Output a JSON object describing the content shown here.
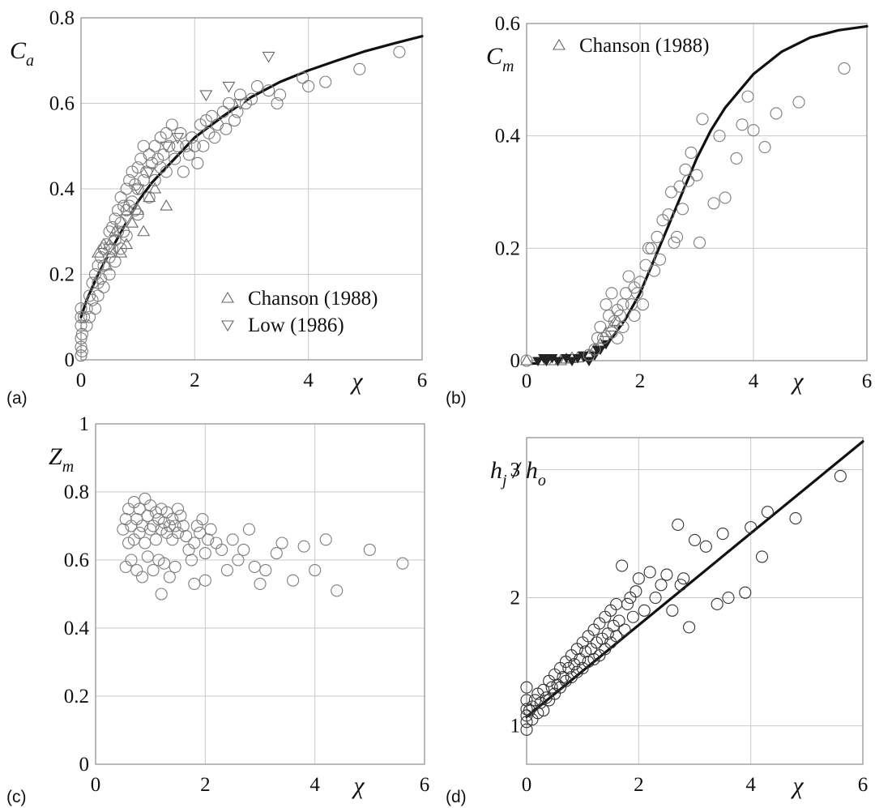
{
  "chart_data": [
    {
      "type": "scatter",
      "panel_label": "(a)",
      "ylabel": "C",
      "ylabel_sub": "a",
      "xlabel": "χ",
      "xlim": [
        0,
        6
      ],
      "ylim": [
        0,
        0.8
      ],
      "xticks": [
        "0",
        "2",
        "4",
        "6"
      ],
      "yticks": [
        "0",
        "0.2",
        "0.4",
        "0.6",
        "0.8"
      ],
      "grid": true,
      "legend_position": "bottom-right",
      "series": [
        {
          "name": "",
          "kind": "line",
          "x": [
            0,
            0.1,
            0.2,
            0.3,
            0.5,
            0.75,
            1,
            1.25,
            1.5,
            2,
            2.5,
            3,
            3.5,
            4,
            4.5,
            5,
            5.5,
            6
          ],
          "y": [
            0.1,
            0.14,
            0.17,
            0.2,
            0.25,
            0.31,
            0.37,
            0.415,
            0.45,
            0.52,
            0.57,
            0.615,
            0.65,
            0.677,
            0.7,
            0.722,
            0.74,
            0.757
          ]
        },
        {
          "name": "Chanson (1988)",
          "kind": "triangle-up",
          "x": [
            0.3,
            0.4,
            0.45,
            0.5,
            0.55,
            0.6,
            0.7,
            0.8,
            0.9,
            1.0,
            1.1,
            1.2,
            1.3,
            1.5
          ],
          "y": [
            0.25,
            0.27,
            0.22,
            0.27,
            0.25,
            0.3,
            0.25,
            0.27,
            0.32,
            0.35,
            0.3,
            0.38,
            0.4,
            0.36
          ]
        },
        {
          "name": "Low (1986)",
          "kind": "triangle-down",
          "x": [
            0.5,
            0.8,
            1.0,
            1.2,
            1.5,
            1.7,
            2.2,
            2.6,
            2.8,
            3.3
          ],
          "y": [
            0.26,
            0.33,
            0.4,
            0.44,
            0.5,
            0.52,
            0.62,
            0.64,
            0.6,
            0.71
          ]
        },
        {
          "name": "",
          "kind": "circle",
          "x": [
            0.0,
            0.0,
            0.0,
            0.0,
            0.0,
            0.0,
            0.02,
            0.02,
            0.05,
            0.1,
            0.1,
            0.15,
            0.15,
            0.2,
            0.2,
            0.25,
            0.25,
            0.3,
            0.3,
            0.3,
            0.35,
            0.35,
            0.4,
            0.4,
            0.4,
            0.45,
            0.5,
            0.5,
            0.5,
            0.55,
            0.55,
            0.6,
            0.6,
            0.6,
            0.65,
            0.65,
            0.7,
            0.7,
            0.7,
            0.75,
            0.75,
            0.8,
            0.8,
            0.8,
            0.85,
            0.85,
            0.9,
            0.9,
            0.95,
            0.95,
            1.0,
            1.0,
            1.0,
            1.05,
            1.1,
            1.1,
            1.15,
            1.2,
            1.2,
            1.25,
            1.3,
            1.3,
            1.35,
            1.4,
            1.4,
            1.45,
            1.5,
            1.5,
            1.55,
            1.6,
            1.65,
            1.7,
            1.75,
            1.8,
            1.85,
            1.9,
            1.95,
            2.0,
            2.05,
            2.1,
            2.15,
            2.2,
            2.25,
            2.3,
            2.35,
            2.4,
            2.5,
            2.55,
            2.6,
            2.7,
            2.75,
            2.8,
            2.9,
            3.0,
            3.1,
            3.3,
            3.45,
            3.5,
            3.9,
            4.0,
            4.3,
            4.9,
            5.6
          ],
          "y": [
            0.01,
            0.03,
            0.05,
            0.08,
            0.1,
            0.12,
            0.02,
            0.06,
            0.1,
            0.12,
            0.08,
            0.15,
            0.1,
            0.18,
            0.14,
            0.2,
            0.12,
            0.22,
            0.18,
            0.15,
            0.24,
            0.19,
            0.26,
            0.22,
            0.17,
            0.27,
            0.3,
            0.24,
            0.2,
            0.31,
            0.26,
            0.33,
            0.28,
            0.23,
            0.35,
            0.3,
            0.38,
            0.32,
            0.26,
            0.36,
            0.3,
            0.4,
            0.35,
            0.29,
            0.42,
            0.36,
            0.44,
            0.37,
            0.41,
            0.35,
            0.45,
            0.4,
            0.34,
            0.47,
            0.5,
            0.42,
            0.44,
            0.48,
            0.38,
            0.46,
            0.5,
            0.42,
            0.47,
            0.52,
            0.45,
            0.48,
            0.53,
            0.44,
            0.5,
            0.55,
            0.47,
            0.5,
            0.53,
            0.44,
            0.5,
            0.48,
            0.52,
            0.5,
            0.46,
            0.55,
            0.5,
            0.56,
            0.53,
            0.57,
            0.52,
            0.55,
            0.58,
            0.54,
            0.6,
            0.56,
            0.58,
            0.62,
            0.6,
            0.61,
            0.64,
            0.63,
            0.6,
            0.62,
            0.66,
            0.64,
            0.65,
            0.68,
            0.72
          ]
        }
      ],
      "legend": [
        "Chanson (1988)",
        "Low (1986)"
      ]
    },
    {
      "type": "scatter",
      "panel_label": "(b)",
      "ylabel": "C",
      "ylabel_sub": "m",
      "xlabel": "χ",
      "xlim": [
        0,
        6
      ],
      "ylim": [
        0,
        0.6
      ],
      "xticks": [
        "0",
        "2",
        "4",
        "6"
      ],
      "yticks": [
        "0",
        "0.2",
        "0.4",
        "0.6"
      ],
      "grid": true,
      "legend_position": "top-left",
      "series": [
        {
          "name": "",
          "kind": "line",
          "x": [
            0,
            0.5,
            1.0,
            1.25,
            1.5,
            1.75,
            2.0,
            2.25,
            2.5,
            2.75,
            3.0,
            3.25,
            3.5,
            3.75,
            4.0,
            4.5,
            5.0,
            5.5,
            6.0
          ],
          "y": [
            -0.005,
            -0.005,
            0.0,
            0.015,
            0.04,
            0.075,
            0.12,
            0.18,
            0.24,
            0.3,
            0.36,
            0.41,
            0.45,
            0.48,
            0.51,
            0.55,
            0.575,
            0.588,
            0.595
          ]
        },
        {
          "name": "Chanson (1988)",
          "kind": "triangle-up",
          "x": [
            0.0,
            0.3,
            0.4,
            0.5,
            0.6,
            0.7,
            0.8,
            0.9,
            1.1,
            1.2,
            1.3,
            1.4,
            1.5,
            1.6
          ],
          "y": [
            0.0,
            0.0,
            0.0,
            0.0,
            0.0,
            0.003,
            0.005,
            0.005,
            0.01,
            0.02,
            0.03,
            0.05,
            0.06,
            0.07
          ]
        },
        {
          "name": "",
          "kind": "triangle-down-filled",
          "x": [
            0.2,
            0.3,
            0.35,
            0.45,
            0.55,
            0.7,
            0.8,
            0.9,
            1.0,
            1.1,
            1.2,
            1.25,
            1.3,
            1.4
          ],
          "y": [
            0.0,
            0.005,
            0.0,
            0.005,
            0.0,
            0.005,
            0.0,
            0.005,
            0.01,
            0.0,
            0.01,
            0.02,
            0.02,
            0.03
          ]
        },
        {
          "name": "",
          "kind": "circle",
          "x": [
            0.0,
            1.1,
            1.2,
            1.25,
            1.3,
            1.35,
            1.4,
            1.45,
            1.5,
            1.5,
            1.55,
            1.6,
            1.6,
            1.65,
            1.7,
            1.7,
            1.75,
            1.8,
            1.85,
            1.9,
            1.9,
            1.95,
            2.0,
            2.05,
            2.1,
            2.15,
            2.2,
            2.25,
            2.3,
            2.35,
            2.4,
            2.5,
            2.55,
            2.6,
            2.65,
            2.7,
            2.75,
            2.8,
            2.85,
            2.9,
            3.0,
            3.05,
            3.1,
            3.3,
            3.4,
            3.5,
            3.7,
            3.8,
            3.9,
            4.0,
            4.2,
            4.4,
            4.8,
            5.6
          ],
          "y": [
            0.0,
            0.01,
            0.02,
            0.04,
            0.06,
            0.04,
            0.1,
            0.08,
            0.05,
            0.12,
            0.07,
            0.09,
            0.04,
            0.08,
            0.1,
            0.06,
            0.12,
            0.15,
            0.1,
            0.13,
            0.08,
            0.12,
            0.14,
            0.1,
            0.17,
            0.2,
            0.2,
            0.16,
            0.22,
            0.18,
            0.25,
            0.26,
            0.3,
            0.21,
            0.22,
            0.31,
            0.27,
            0.34,
            0.32,
            0.37,
            0.33,
            0.21,
            0.43,
            0.28,
            0.4,
            0.29,
            0.36,
            0.42,
            0.47,
            0.41,
            0.38,
            0.44,
            0.46,
            0.52
          ]
        }
      ],
      "legend": [
        "Chanson (1988)"
      ]
    },
    {
      "type": "scatter",
      "panel_label": "(c)",
      "ylabel": "Z",
      "ylabel_sub": "m",
      "xlabel": "χ",
      "xlim": [
        0,
        6
      ],
      "ylim": [
        0,
        1
      ],
      "xticks": [
        "0",
        "2",
        "4",
        "6"
      ],
      "yticks": [
        "0",
        "0.2",
        "0.4",
        "0.6",
        "0.8",
        "1"
      ],
      "grid": true,
      "series": [
        {
          "name": "",
          "kind": "circle",
          "x": [
            0.5,
            0.55,
            0.6,
            0.6,
            0.65,
            0.7,
            0.7,
            0.75,
            0.8,
            0.8,
            0.85,
            0.9,
            0.9,
            0.95,
            1.0,
            1.0,
            1.05,
            1.1,
            1.1,
            1.15,
            1.2,
            1.2,
            1.25,
            1.3,
            1.3,
            1.35,
            1.4,
            1.4,
            1.45,
            1.5,
            1.5,
            1.55,
            1.6,
            1.65,
            1.7,
            1.75,
            1.8,
            1.85,
            1.9,
            1.95,
            2.0,
            2.05,
            2.1,
            2.2,
            2.3,
            2.4,
            2.5,
            2.6,
            2.7,
            2.8,
            2.9,
            3.0,
            3.1,
            3.3,
            3.4,
            3.6,
            3.8,
            4.0,
            4.2,
            4.4,
            5.0,
            5.6,
            0.55,
            0.65,
            0.75,
            0.85,
            0.95,
            1.05,
            1.15,
            1.25,
            1.35,
            1.45,
            1.2,
            1.8,
            2.0
          ],
          "y": [
            0.69,
            0.72,
            0.65,
            0.75,
            0.7,
            0.77,
            0.66,
            0.72,
            0.68,
            0.75,
            0.7,
            0.78,
            0.65,
            0.73,
            0.69,
            0.76,
            0.7,
            0.74,
            0.66,
            0.72,
            0.69,
            0.75,
            0.71,
            0.68,
            0.74,
            0.7,
            0.66,
            0.72,
            0.7,
            0.75,
            0.68,
            0.73,
            0.7,
            0.67,
            0.63,
            0.6,
            0.65,
            0.7,
            0.68,
            0.72,
            0.62,
            0.66,
            0.69,
            0.65,
            0.63,
            0.57,
            0.66,
            0.6,
            0.63,
            0.69,
            0.58,
            0.53,
            0.57,
            0.62,
            0.65,
            0.54,
            0.64,
            0.57,
            0.66,
            0.51,
            0.63,
            0.59,
            0.58,
            0.6,
            0.57,
            0.55,
            0.61,
            0.57,
            0.6,
            0.59,
            0.55,
            0.58,
            0.5,
            0.53,
            0.54
          ]
        }
      ]
    },
    {
      "type": "scatter",
      "panel_label": "(d)",
      "ylabel": "h",
      "ylabel_sub": "j",
      "ylabel_sep": " / ",
      "ylabel2": "h",
      "ylabel2_sub": "o",
      "xlabel": "χ",
      "xlim": [
        0,
        6
      ],
      "ylim": [
        0.7,
        3.25
      ],
      "xticks": [
        "0",
        "2",
        "4",
        "6"
      ],
      "yticks": [
        "1",
        "2",
        "3"
      ],
      "grid": true,
      "series": [
        {
          "name": "",
          "kind": "line",
          "x": [
            0,
            6
          ],
          "y": [
            1.07,
            3.22
          ]
        },
        {
          "name": "",
          "kind": "circle-dark",
          "x": [
            0.0,
            0.0,
            0.0,
            0.0,
            0.0,
            0.0,
            0.05,
            0.1,
            0.1,
            0.15,
            0.2,
            0.2,
            0.25,
            0.3,
            0.3,
            0.35,
            0.4,
            0.4,
            0.45,
            0.5,
            0.5,
            0.55,
            0.6,
            0.6,
            0.65,
            0.7,
            0.7,
            0.75,
            0.8,
            0.8,
            0.85,
            0.9,
            0.9,
            0.95,
            1.0,
            1.0,
            1.05,
            1.1,
            1.1,
            1.15,
            1.2,
            1.2,
            1.25,
            1.3,
            1.3,
            1.35,
            1.4,
            1.4,
            1.45,
            1.5,
            1.5,
            1.55,
            1.6,
            1.6,
            1.65,
            1.7,
            1.75,
            1.8,
            1.85,
            1.9,
            1.95,
            2.0,
            2.1,
            2.2,
            2.3,
            2.4,
            2.5,
            2.6,
            2.7,
            2.75,
            2.8,
            2.9,
            3.0,
            3.2,
            3.4,
            3.5,
            3.6,
            3.9,
            4.0,
            4.2,
            4.3,
            4.8,
            5.6
          ],
          "y": [
            0.97,
            1.03,
            1.08,
            1.13,
            1.2,
            1.3,
            1.12,
            1.15,
            1.05,
            1.2,
            1.1,
            1.25,
            1.18,
            1.28,
            1.12,
            1.22,
            1.35,
            1.2,
            1.3,
            1.25,
            1.4,
            1.32,
            1.45,
            1.3,
            1.38,
            1.5,
            1.35,
            1.45,
            1.55,
            1.38,
            1.48,
            1.6,
            1.42,
            1.52,
            1.65,
            1.45,
            1.58,
            1.7,
            1.5,
            1.6,
            1.75,
            1.52,
            1.65,
            1.8,
            1.55,
            1.68,
            1.85,
            1.6,
            1.72,
            1.9,
            1.65,
            1.78,
            1.95,
            1.7,
            1.82,
            2.25,
            1.75,
            1.95,
            2.0,
            1.85,
            2.05,
            2.15,
            1.9,
            2.2,
            2.0,
            2.1,
            2.18,
            1.9,
            2.57,
            2.1,
            2.15,
            1.77,
            2.45,
            2.4,
            1.95,
            2.5,
            2.0,
            2.04,
            2.55,
            2.32,
            2.67,
            2.62,
            2.95
          ]
        }
      ]
    }
  ]
}
